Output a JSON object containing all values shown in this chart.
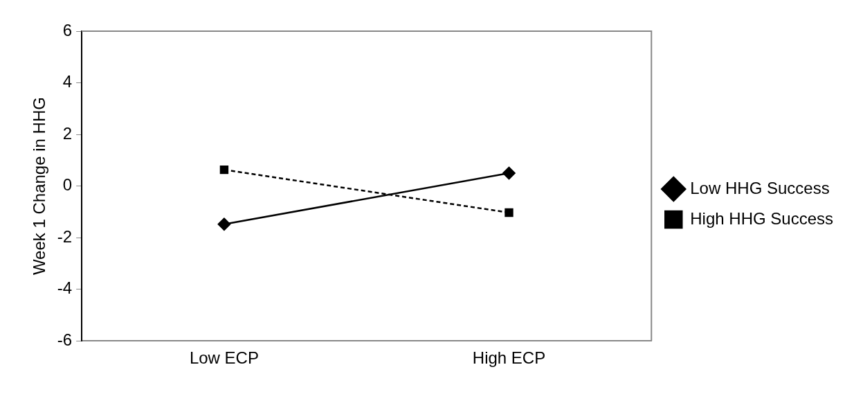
{
  "chart_data": {
    "type": "line",
    "ylabel": "Week 1 Change in HHG",
    "categories": [
      "Low ECP",
      "High ECP"
    ],
    "series": [
      {
        "name": "Low HHG Success",
        "color": "#000000",
        "values": [
          -1.48,
          0.5
        ],
        "marker": "diamond",
        "line_style": "solid"
      },
      {
        "name": "High HHG Success",
        "color": "#000000",
        "values": [
          0.63,
          -1.03
        ],
        "marker": "square",
        "line_style": "dashed"
      }
    ],
    "ylim": [
      -6,
      6
    ],
    "yticks": [
      -6,
      -4,
      -2,
      0,
      2,
      4,
      6
    ],
    "grid": false,
    "legend": "right"
  }
}
